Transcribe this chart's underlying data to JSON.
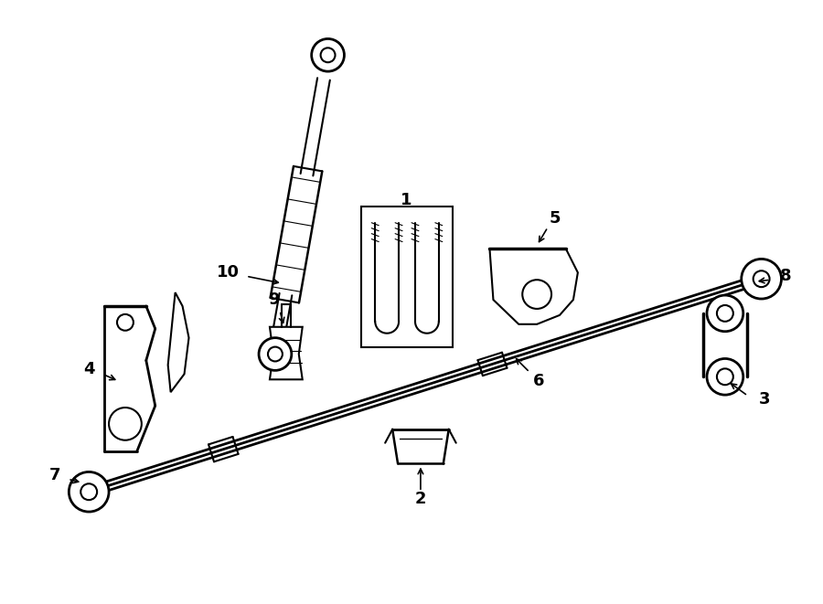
{
  "bg_color": "#ffffff",
  "line_color": "#000000",
  "lw": 1.5,
  "fig_width": 9.0,
  "fig_height": 6.61,
  "dpi": 100
}
